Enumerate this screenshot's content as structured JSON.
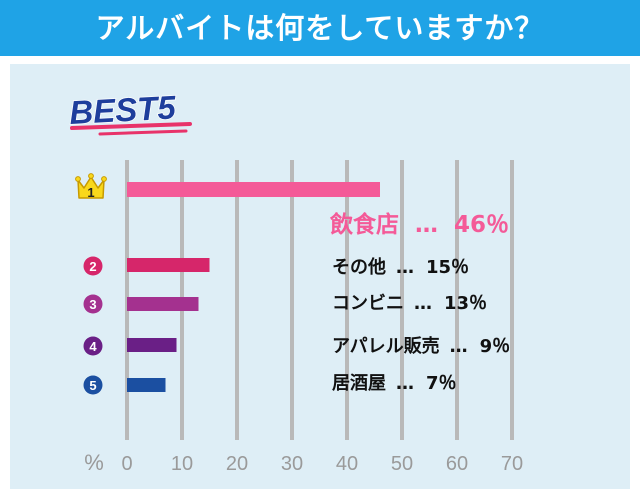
{
  "header": {
    "title": "アルバイトは何をしていますか？"
  },
  "badge": {
    "label": "BEST5"
  },
  "colors": {
    "header_bg": "#1fa3e6",
    "panel_bg": "#deeef6",
    "grid": "#b9b9b9",
    "axis_text": "#9a9a9a",
    "badge_text": "#1e3e9c",
    "badge_underline": "#e8336a",
    "crown": "#f9d81b"
  },
  "chart_data": {
    "type": "bar",
    "orientation": "horizontal",
    "x_unit_label": "%",
    "xlim": [
      0,
      70
    ],
    "x_ticks": [
      0,
      10,
      20,
      30,
      40,
      50,
      60,
      70
    ],
    "grid": true,
    "categories": [
      "飲食店",
      "その他",
      "コンビニ",
      "アパレル販売",
      "居酒屋"
    ],
    "values": [
      46,
      15,
      13,
      9,
      7
    ],
    "ranks": [
      "1",
      "2",
      "3",
      "4",
      "5"
    ],
    "value_labels": [
      "46％",
      "15％",
      "13％",
      "9％",
      "7％"
    ],
    "separator": "…",
    "bar_colors": [
      "#f45a98",
      "#d6266a",
      "#a4318f",
      "#6a1f86",
      "#1b4fa1"
    ]
  }
}
